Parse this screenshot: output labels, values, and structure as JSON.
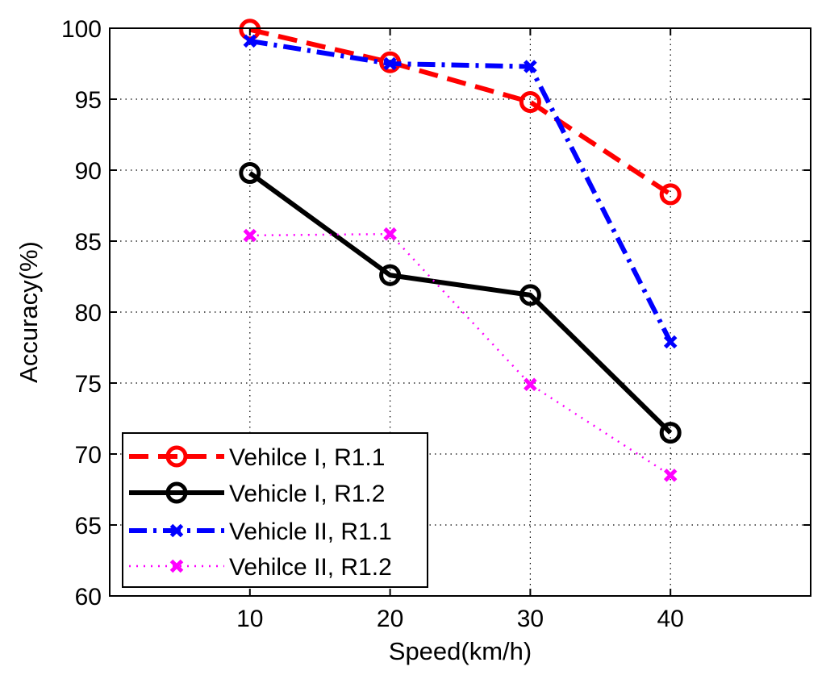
{
  "chart_data": {
    "type": "line",
    "title": "",
    "xlabel": "Speed(km/h)",
    "ylabel": "Accuracy(%)",
    "xlim": [
      0,
      50
    ],
    "ylim": [
      60,
      100
    ],
    "xticks": [
      10,
      20,
      30,
      40
    ],
    "yticks": [
      60,
      65,
      70,
      75,
      80,
      85,
      90,
      95,
      100
    ],
    "grid": true,
    "legend_position": "bottom-left",
    "x": [
      10,
      20,
      30,
      40
    ],
    "series": [
      {
        "name": "Vehilce I, R1.1",
        "values": [
          99.9,
          97.6,
          94.8,
          88.3
        ],
        "color": "#ff0000",
        "style": "dashed",
        "marker": "circle"
      },
      {
        "name": "Vehicle I, R1.2",
        "values": [
          89.8,
          82.6,
          81.2,
          71.5
        ],
        "color": "#000000",
        "style": "solid",
        "marker": "circle"
      },
      {
        "name": "Vehicle II, R1.1",
        "values": [
          99.1,
          97.5,
          97.3,
          77.9
        ],
        "color": "#0000ff",
        "style": "dashdot",
        "marker": "x"
      },
      {
        "name": "Vehilce II, R1.2",
        "values": [
          85.4,
          85.5,
          74.9,
          68.5
        ],
        "color": "#ff00ff",
        "style": "dotted",
        "marker": "x"
      }
    ]
  }
}
